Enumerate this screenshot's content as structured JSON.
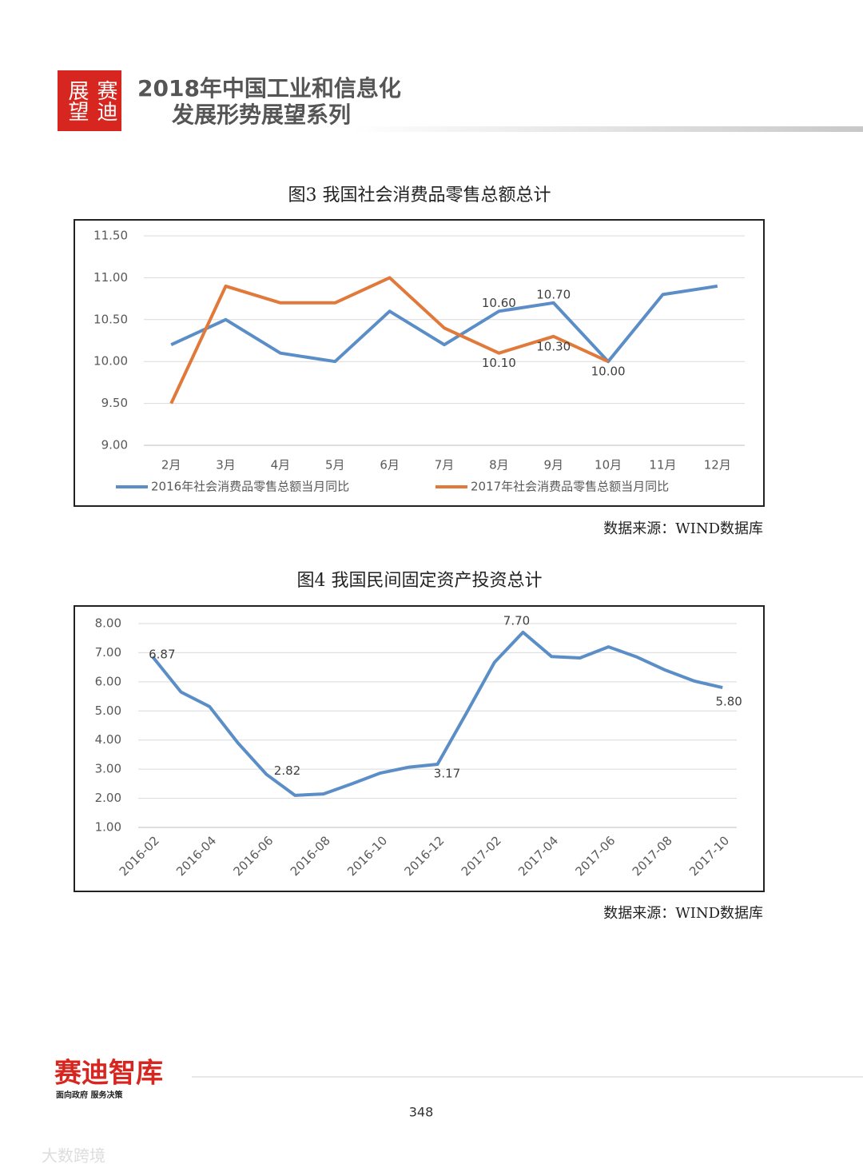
{
  "header": {
    "logo_columns": [
      "赛迪",
      "展望"
    ],
    "title_lines": [
      "2018年中国工业和信息化",
      "发展形势展望系列"
    ]
  },
  "chart_data": [
    {
      "type": "line",
      "title": "图3 我国社会消费品零售总额总计",
      "source": "数据来源：WIND数据库",
      "categories": [
        "2月",
        "3月",
        "4月",
        "5月",
        "6月",
        "7月",
        "8月",
        "9月",
        "10月",
        "11月",
        "12月"
      ],
      "series": [
        {
          "name": "2016年社会消费品零售总额当月同比",
          "color": "#5b8ec6",
          "values": [
            10.2,
            10.5,
            10.1,
            10.0,
            10.6,
            10.2,
            10.6,
            10.7,
            10.0,
            10.8,
            10.9
          ],
          "value_labels": [
            null,
            null,
            null,
            null,
            null,
            null,
            "10.60",
            "10.70",
            null,
            null,
            null
          ]
        },
        {
          "name": "2017年社会消费品零售总额当月同比",
          "color": "#e0793a",
          "values": [
            9.5,
            10.9,
            10.7,
            10.7,
            11.0,
            10.4,
            10.1,
            10.3,
            10.0,
            null,
            null
          ],
          "value_labels": [
            null,
            null,
            null,
            null,
            null,
            null,
            "10.10",
            "10.30",
            "10.00",
            null,
            null
          ]
        }
      ],
      "ylim": [
        9,
        11.5
      ],
      "yticks": [
        {
          "value": 9,
          "label": "9.00"
        },
        {
          "value": 9.5,
          "label": "9.50"
        },
        {
          "value": 10,
          "label": "10.00"
        },
        {
          "value": 10.5,
          "label": "10.50"
        },
        {
          "value": 11,
          "label": "11.00"
        },
        {
          "value": 11.5,
          "label": "11.50"
        }
      ],
      "grid": true,
      "legend": "bottom"
    },
    {
      "type": "line",
      "title": "图4 我国民间固定资产投资总计",
      "source": "数据来源：WIND数据库",
      "categories": [
        "2016-02",
        null,
        "2016-04",
        null,
        "2016-06",
        null,
        "2016-08",
        null,
        "2016-10",
        null,
        "2016-12",
        null,
        "2017-02",
        null,
        "2017-04",
        null,
        "2017-06",
        null,
        "2017-08",
        null,
        "2017-10"
      ],
      "series": [
        {
          "color": "#5b8ec6",
          "values": [
            6.87,
            5.65,
            5.15,
            3.9,
            2.82,
            2.1,
            2.15,
            2.5,
            2.87,
            3.07,
            3.17,
            4.9,
            6.67,
            7.7,
            6.87,
            6.82,
            7.2,
            6.85,
            6.4,
            6.03,
            5.8
          ],
          "value_labels": [
            "6.87",
            null,
            null,
            null,
            "2.82",
            null,
            null,
            null,
            null,
            null,
            "3.17",
            null,
            null,
            "7.70",
            null,
            null,
            null,
            null,
            null,
            null,
            "5.80"
          ]
        }
      ],
      "ylim": [
        1,
        8
      ],
      "yticks": [
        {
          "value": 1,
          "label": "1.00"
        },
        {
          "value": 2,
          "label": "2.00"
        },
        {
          "value": 3,
          "label": "3.00"
        },
        {
          "value": 4,
          "label": "4.00"
        },
        {
          "value": 5,
          "label": "5.00"
        },
        {
          "value": 6,
          "label": "6.00"
        },
        {
          "value": 7,
          "label": "7.00"
        },
        {
          "value": 8,
          "label": "8.00"
        }
      ],
      "grid": true
    }
  ],
  "footer": {
    "brand": "赛迪智库",
    "slogan": "面向政府  服务决策",
    "page": "348",
    "watermark": "大数跨境"
  }
}
